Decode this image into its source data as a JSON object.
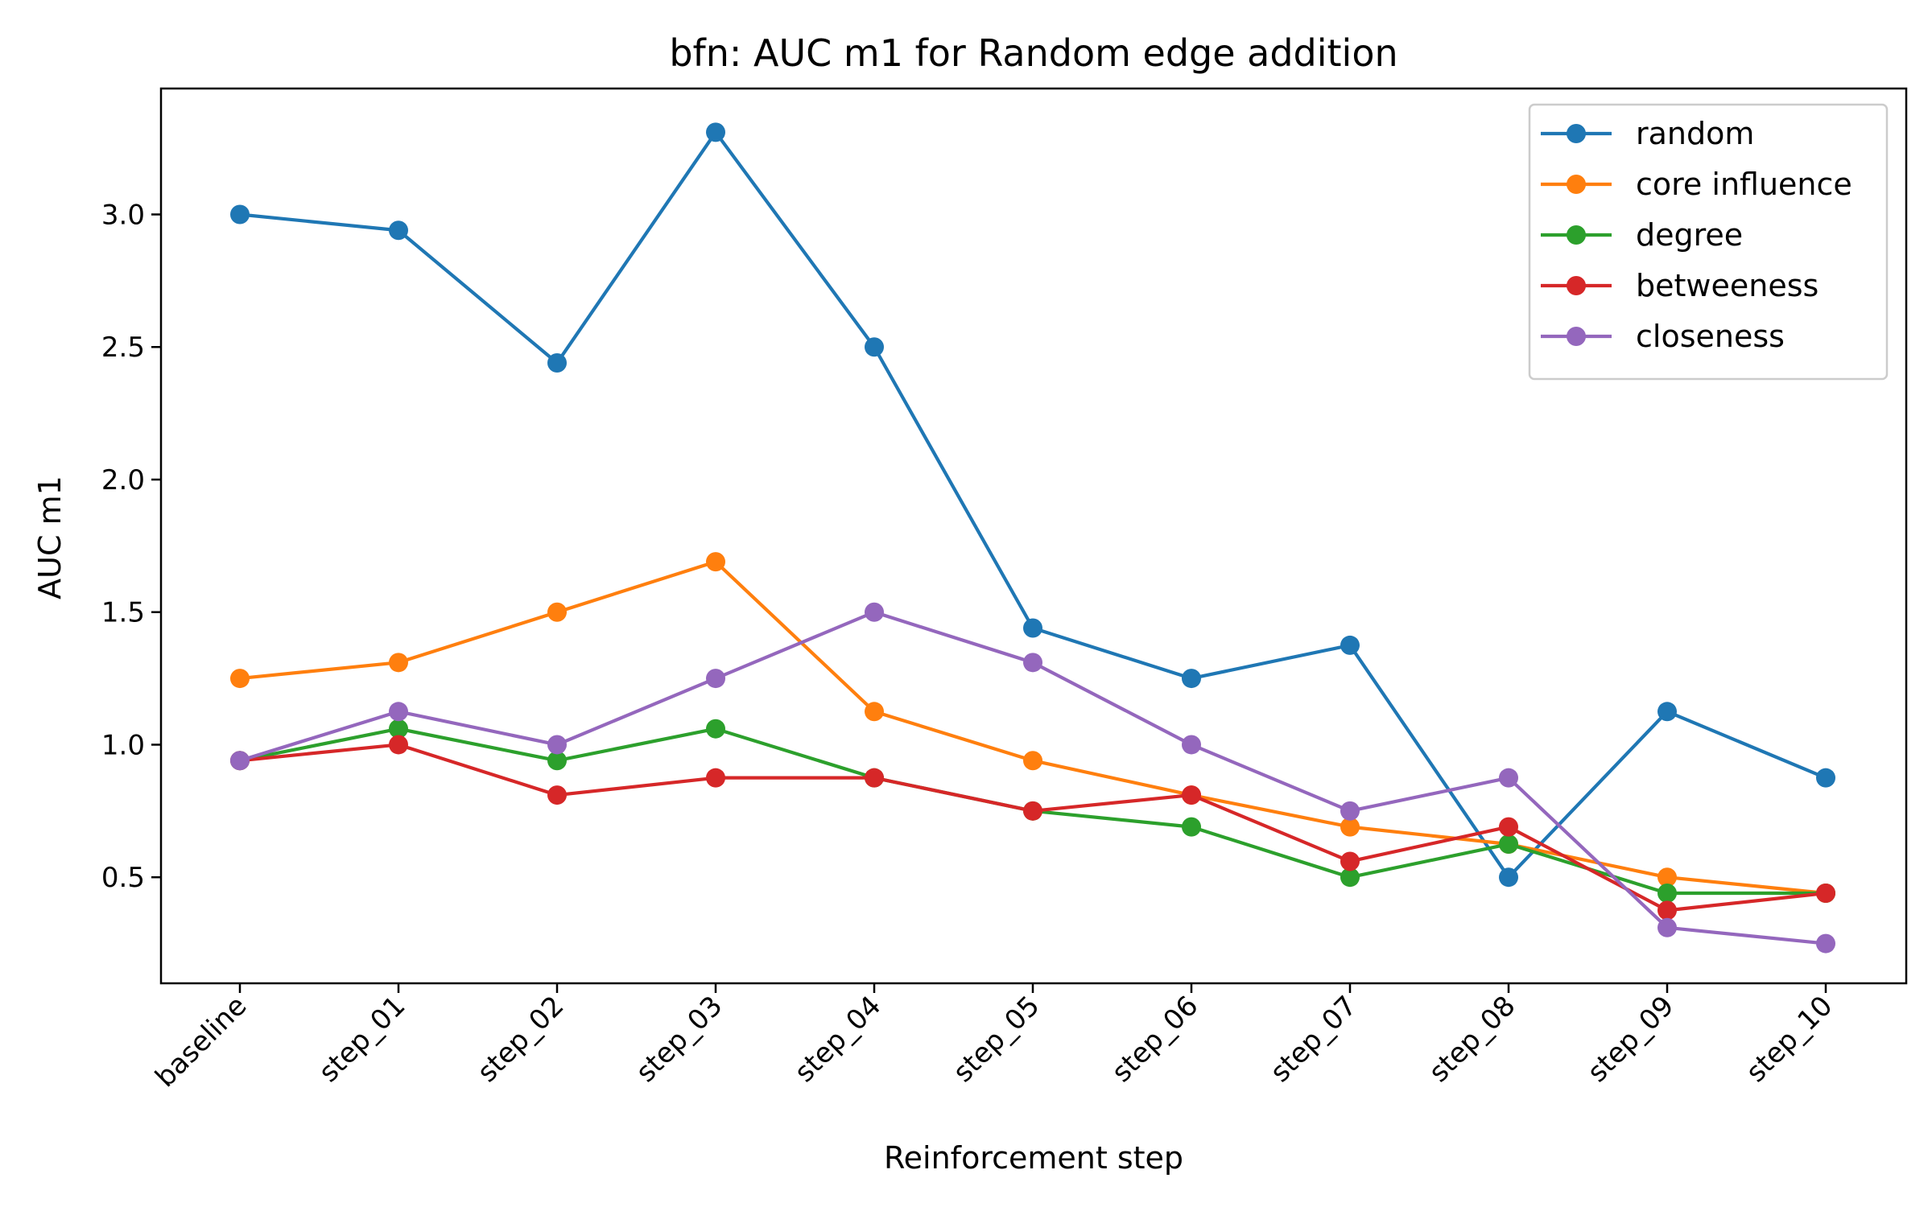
{
  "chart_data": {
    "type": "line",
    "title": "bfn: AUC m1 for Random edge addition",
    "xlabel": "Reinforcement step",
    "ylabel": "AUC m1",
    "categories": [
      "baseline",
      "step_01",
      "step_02",
      "step_03",
      "step_04",
      "step_05",
      "step_06",
      "step_07",
      "step_08",
      "step_09",
      "step_10"
    ],
    "ylim": [
      0.1,
      3.475
    ],
    "yticks": [
      0.5,
      1.0,
      1.5,
      2.0,
      2.5,
      3.0
    ],
    "ytick_labels": [
      "0.5",
      "1.0",
      "1.5",
      "2.0",
      "2.5",
      "3.0"
    ],
    "grid": false,
    "legend_position": "top-right",
    "series": [
      {
        "name": "random",
        "color": "#1f77b4",
        "values": [
          3.0,
          2.94,
          2.44,
          3.31,
          2.5,
          1.44,
          1.25,
          1.375,
          0.5,
          1.125,
          0.875
        ]
      },
      {
        "name": "core influence",
        "color": "#ff7f0e",
        "values": [
          1.25,
          1.31,
          1.5,
          1.69,
          1.125,
          0.94,
          0.81,
          0.69,
          0.625,
          0.5,
          0.44
        ]
      },
      {
        "name": "degree",
        "color": "#2ca02c",
        "values": [
          0.94,
          1.06,
          0.94,
          1.06,
          0.875,
          0.75,
          0.69,
          0.5,
          0.625,
          0.44,
          0.44
        ]
      },
      {
        "name": "betweeness",
        "color": "#d62728",
        "values": [
          0.94,
          1.0,
          0.81,
          0.875,
          0.875,
          0.75,
          0.81,
          0.56,
          0.69,
          0.375,
          0.44
        ]
      },
      {
        "name": "closeness",
        "color": "#9467bd",
        "values": [
          0.94,
          1.125,
          1.0,
          1.25,
          1.5,
          1.31,
          1.0,
          0.75,
          0.875,
          0.31,
          0.25
        ]
      }
    ]
  }
}
